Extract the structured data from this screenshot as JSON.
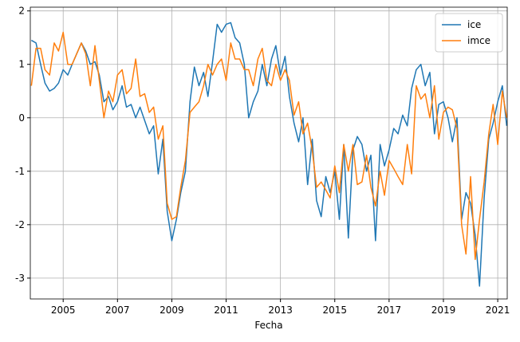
{
  "chart_data": {
    "type": "line",
    "x_label": "Fecha",
    "x": [
      2003.83,
      2004.0,
      2004.17,
      2004.33,
      2004.5,
      2004.67,
      2004.83,
      2005.0,
      2005.17,
      2005.33,
      2005.5,
      2005.67,
      2005.83,
      2006.0,
      2006.17,
      2006.33,
      2006.5,
      2006.67,
      2006.83,
      2007.0,
      2007.17,
      2007.33,
      2007.5,
      2007.67,
      2007.83,
      2008.0,
      2008.17,
      2008.33,
      2008.5,
      2008.67,
      2008.83,
      2009.0,
      2009.17,
      2009.33,
      2009.5,
      2009.67,
      2009.83,
      2010.0,
      2010.17,
      2010.33,
      2010.5,
      2010.67,
      2010.83,
      2011.0,
      2011.17,
      2011.33,
      2011.5,
      2011.67,
      2011.83,
      2012.0,
      2012.17,
      2012.33,
      2012.5,
      2012.67,
      2012.83,
      2013.0,
      2013.17,
      2013.33,
      2013.5,
      2013.67,
      2013.83,
      2014.0,
      2014.17,
      2014.33,
      2014.5,
      2014.67,
      2014.83,
      2015.0,
      2015.17,
      2015.33,
      2015.5,
      2015.67,
      2015.83,
      2016.0,
      2016.17,
      2016.33,
      2016.5,
      2016.67,
      2016.83,
      2017.0,
      2017.17,
      2017.33,
      2017.5,
      2017.67,
      2017.83,
      2018.0,
      2018.17,
      2018.33,
      2018.5,
      2018.67,
      2018.83,
      2019.0,
      2019.17,
      2019.33,
      2019.5,
      2019.67,
      2019.83,
      2020.0,
      2020.17,
      2020.33,
      2020.5,
      2020.67,
      2020.83,
      2021.0,
      2021.17,
      2021.33
    ],
    "series": [
      {
        "name": "ice",
        "color": "#1f77b4",
        "values": [
          1.45,
          1.4,
          1.0,
          0.65,
          0.5,
          0.55,
          0.65,
          0.9,
          0.8,
          1.0,
          1.2,
          1.4,
          1.25,
          1.0,
          1.05,
          0.8,
          0.3,
          0.4,
          0.15,
          0.3,
          0.6,
          0.2,
          0.25,
          0.0,
          0.2,
          -0.05,
          -0.3,
          -0.15,
          -1.05,
          -0.4,
          -1.75,
          -2.3,
          -1.9,
          -1.4,
          -1.0,
          0.3,
          0.95,
          0.6,
          0.85,
          0.4,
          1.05,
          1.75,
          1.6,
          1.75,
          1.78,
          1.5,
          1.4,
          1.0,
          0.0,
          0.3,
          0.5,
          1.0,
          0.6,
          1.1,
          1.35,
          0.8,
          1.15,
          0.4,
          -0.1,
          -0.45,
          0.0,
          -1.25,
          -0.4,
          -1.55,
          -1.85,
          -1.1,
          -1.4,
          -1.0,
          -1.9,
          -0.5,
          -2.25,
          -0.6,
          -0.35,
          -0.5,
          -1.0,
          -0.7,
          -2.3,
          -0.5,
          -0.9,
          -0.6,
          -0.2,
          -0.3,
          0.05,
          -0.15,
          0.55,
          0.9,
          1.0,
          0.6,
          0.85,
          -0.3,
          0.25,
          0.3,
          0.0,
          -0.45,
          0.0,
          -1.9,
          -1.4,
          -1.6,
          -2.2,
          -3.15,
          -1.5,
          -0.4,
          -0.1,
          0.3,
          0.6,
          -0.15
        ]
      },
      {
        "name": "imce",
        "color": "#ff7f0e",
        "values": [
          0.6,
          1.3,
          1.3,
          0.9,
          0.8,
          1.4,
          1.25,
          1.6,
          1.0,
          1.0,
          1.2,
          1.4,
          1.2,
          0.6,
          1.35,
          0.7,
          0.0,
          0.5,
          0.3,
          0.8,
          0.9,
          0.45,
          0.55,
          1.1,
          0.4,
          0.45,
          0.1,
          0.2,
          -0.4,
          -0.15,
          -1.6,
          -1.9,
          -1.85,
          -1.3,
          -0.8,
          0.1,
          0.2,
          0.3,
          0.6,
          1.0,
          0.8,
          1.0,
          1.1,
          0.7,
          1.4,
          1.1,
          1.1,
          0.9,
          0.9,
          0.6,
          1.1,
          1.3,
          0.7,
          0.6,
          1.0,
          0.7,
          0.9,
          0.7,
          0.05,
          0.3,
          -0.3,
          -0.1,
          -0.6,
          -1.3,
          -1.2,
          -1.35,
          -1.5,
          -0.9,
          -1.4,
          -0.5,
          -1.0,
          -0.5,
          -1.25,
          -1.2,
          -0.7,
          -1.3,
          -1.65,
          -1.0,
          -1.45,
          -0.8,
          -0.95,
          -1.1,
          -1.25,
          -0.5,
          -1.05,
          0.6,
          0.35,
          0.45,
          0.0,
          0.6,
          -0.4,
          0.1,
          0.2,
          0.15,
          -0.2,
          -2.0,
          -2.55,
          -1.1,
          -2.65,
          -1.9,
          -1.2,
          -0.3,
          0.25,
          -0.5,
          0.5,
          0.0
        ]
      }
    ],
    "xlim": [
      2003.79,
      2021.35
    ],
    "xticks": [
      2005,
      2007,
      2009,
      2011,
      2013,
      2015,
      2017,
      2019,
      2021
    ],
    "ylim": [
      -3.39,
      2.07
    ],
    "yticks": [
      -3,
      -2,
      -1,
      0,
      1,
      2
    ],
    "grid": true,
    "legend": "upper right"
  }
}
